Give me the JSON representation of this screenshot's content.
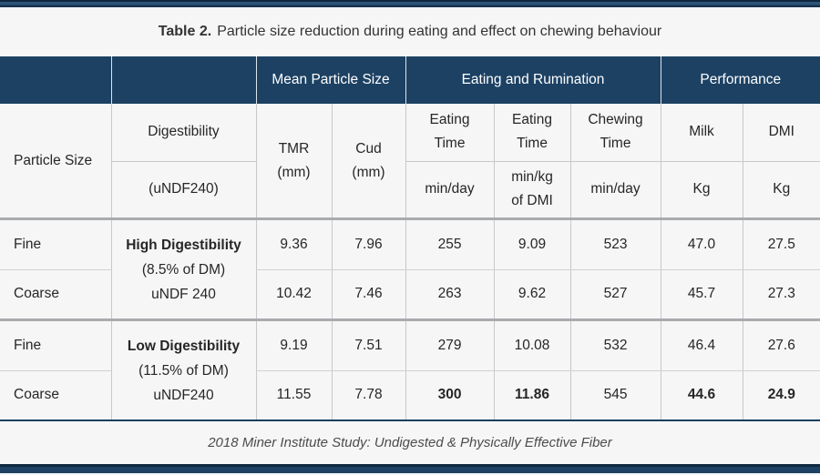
{
  "title": {
    "prefix": "Table 2.",
    "text": "Particle size reduction during eating and effect on chewing behaviour"
  },
  "colors": {
    "navy": "#1c4163",
    "navy_dark": "#10283e",
    "navy_mid": "#2d5479",
    "bg": "#f6f6f7",
    "grid": "#c6c8ca",
    "separator": "#a9abad",
    "text": "#262626",
    "footer_text": "#4c4c4c"
  },
  "top_header": {
    "mean_particle_size": "Mean Particle Size",
    "eating_rumination": "Eating and Rumination",
    "performance": "Performance"
  },
  "sub_header": {
    "particle_size": "Particle Size",
    "digestibility": "Digestibility",
    "digestibility_unit": "(uNDF240)",
    "tmr_line1": "TMR",
    "tmr_line2": "(mm)",
    "cud_line1": "Cud",
    "cud_line2": "(mm)",
    "eating_time1_line1": "Eating",
    "eating_time1_line2": "Time",
    "eating_time1_unit": "min/day",
    "eating_time2_line1": "Eating",
    "eating_time2_line2": "Time",
    "eating_time2_unit_line1": "min/kg",
    "eating_time2_unit_line2": "of DMI",
    "chewing_line1": "Chewing",
    "chewing_line2": "Time",
    "chewing_unit": "min/day",
    "milk": "Milk",
    "milk_unit": "Kg",
    "dmi": "DMI",
    "dmi_unit": "Kg"
  },
  "groups": [
    {
      "title": "High Digestibility",
      "subtitle": "(8.5% of DM)",
      "note": "uNDF 240",
      "rows": [
        {
          "particle": "Fine",
          "tmr": "9.36",
          "cud": "7.96",
          "eating": "255",
          "eating_per_dmi": "9.09",
          "chewing": "523",
          "milk": "47.0",
          "dmi": "27.5",
          "emphasized": []
        },
        {
          "particle": "Coarse",
          "tmr": "10.42",
          "cud": "7.46",
          "eating": "263",
          "eating_per_dmi": "9.62",
          "chewing": "527",
          "milk": "45.7",
          "dmi": "27.3",
          "emphasized": []
        }
      ]
    },
    {
      "title": "Low Digestibility",
      "subtitle": "(11.5% of DM)",
      "note": "uNDF240",
      "rows": [
        {
          "particle": "Fine",
          "tmr": "9.19",
          "cud": "7.51",
          "eating": "279",
          "eating_per_dmi": "10.08",
          "chewing": "532",
          "milk": "46.4",
          "dmi": "27.6",
          "emphasized": []
        },
        {
          "particle": "Coarse",
          "tmr": "11.55",
          "cud": "7.78",
          "eating": "300",
          "eating_per_dmi": "11.86",
          "chewing": "545",
          "milk": "44.6",
          "dmi": "24.9",
          "emphasized": [
            "eating",
            "eating_per_dmi",
            "milk",
            "dmi"
          ]
        }
      ]
    }
  ],
  "footer": "2018 Miner Institute Study: Undigested & Physically Effective Fiber"
}
